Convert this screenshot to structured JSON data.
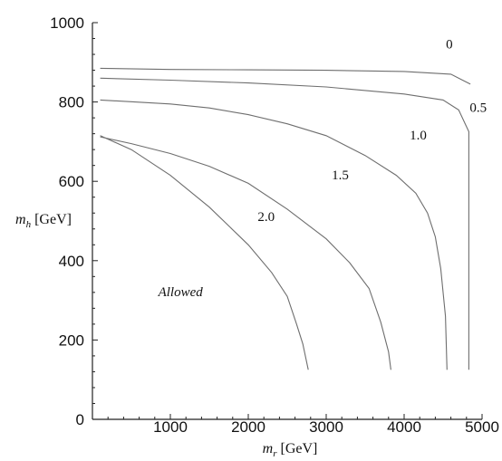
{
  "chart_data": {
    "type": "line",
    "title": "",
    "xlabel": {
      "symbol": "m",
      "subscript": "r",
      "unit": "[GeV]"
    },
    "ylabel": {
      "symbol": "m",
      "subscript": "h",
      "unit": "[GeV]"
    },
    "xlim": [
      0,
      5000
    ],
    "ylim": [
      0,
      1000
    ],
    "xticks": [
      1000,
      2000,
      3000,
      4000,
      5000
    ],
    "yticks": [
      0,
      200,
      400,
      600,
      800,
      1000
    ],
    "xtick_labels": [
      "1000",
      "2000",
      "3000",
      "4000",
      "5000"
    ],
    "ytick_labels": [
      "0",
      "200",
      "400",
      "600",
      "800",
      "1000"
    ],
    "grid": false,
    "line_color": "#6e6e6e",
    "series": [
      {
        "name": "0",
        "points": [
          [
            100,
            885
          ],
          [
            1000,
            882
          ],
          [
            2000,
            881
          ],
          [
            3000,
            880
          ],
          [
            4000,
            877
          ],
          [
            4600,
            870
          ],
          [
            4850,
            845
          ]
        ]
      },
      {
        "name": "0.5",
        "points": [
          [
            100,
            860
          ],
          [
            1000,
            855
          ],
          [
            2000,
            848
          ],
          [
            3000,
            838
          ],
          [
            4000,
            820
          ],
          [
            4500,
            805
          ],
          [
            4700,
            780
          ],
          [
            4830,
            725
          ],
          [
            4830,
            125
          ]
        ]
      },
      {
        "name": "1.0",
        "points": [
          [
            100,
            805
          ],
          [
            1000,
            795
          ],
          [
            1500,
            785
          ],
          [
            2000,
            768
          ],
          [
            2500,
            745
          ],
          [
            3000,
            715
          ],
          [
            3500,
            665
          ],
          [
            3900,
            615
          ],
          [
            4150,
            570
          ],
          [
            4300,
            520
          ],
          [
            4400,
            460
          ],
          [
            4470,
            380
          ],
          [
            4530,
            260
          ],
          [
            4550,
            125
          ]
        ]
      },
      {
        "name": "1.5",
        "points": [
          [
            100,
            712
          ],
          [
            500,
            695
          ],
          [
            1000,
            670
          ],
          [
            1500,
            638
          ],
          [
            2000,
            595
          ],
          [
            2500,
            530
          ],
          [
            3000,
            455
          ],
          [
            3300,
            395
          ],
          [
            3550,
            330
          ],
          [
            3700,
            245
          ],
          [
            3800,
            170
          ],
          [
            3830,
            125
          ]
        ]
      },
      {
        "name": "2.0",
        "points": [
          [
            100,
            715
          ],
          [
            500,
            680
          ],
          [
            1000,
            615
          ],
          [
            1500,
            535
          ],
          [
            2000,
            440
          ],
          [
            2300,
            370
          ],
          [
            2500,
            310
          ],
          [
            2620,
            240
          ],
          [
            2700,
            190
          ],
          [
            2770,
            125
          ]
        ]
      }
    ],
    "curve_labels": [
      {
        "text": "0",
        "x": 4580,
        "y": 935
      },
      {
        "text": "0.5",
        "x": 4950,
        "y": 775
      },
      {
        "text": "1.0",
        "x": 4180,
        "y": 705
      },
      {
        "text": "1.5",
        "x": 3180,
        "y": 605
      },
      {
        "text": "2.0",
        "x": 2230,
        "y": 500
      }
    ],
    "annotations": [
      {
        "text": "Allowed",
        "x": 1130,
        "y": 310
      }
    ]
  }
}
